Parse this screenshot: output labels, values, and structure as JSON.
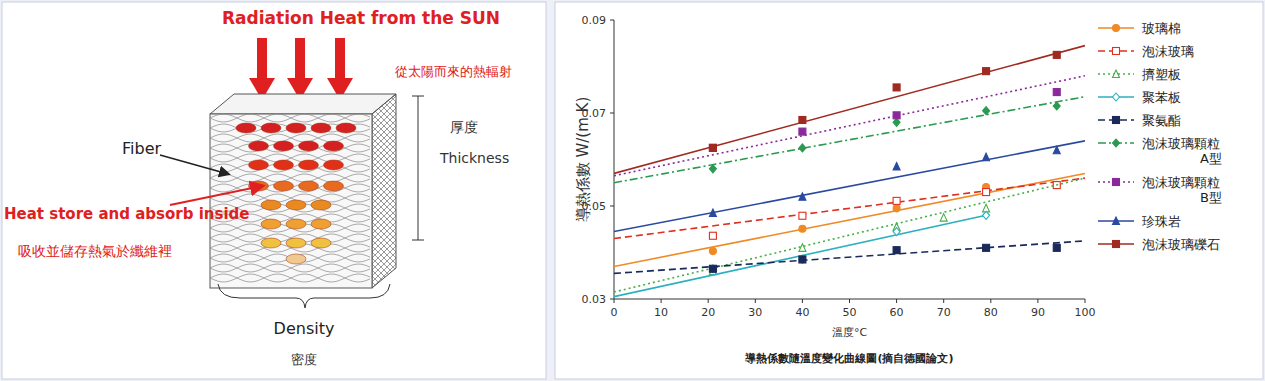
{
  "diagram": {
    "top_label": "Radiation Heat from the SUN",
    "top_label_zh": "從太陽而來的熱輻射",
    "fiber_label": "Fiber",
    "inside_label": "Heat store and absorb inside",
    "inside_label_zh": "吸收並儲存熱氣於纖維裡",
    "thickness_label_zh": "厚度",
    "thickness_label": "Thickness",
    "density_label": "Density",
    "density_label_zh": "密度"
  },
  "chart_data": {
    "type": "scatter",
    "title": "導熱係數隨溫度變化曲線圖(摘自德國論文)",
    "x_label": "溫度°C",
    "y_label": "導熱係數 W/(m K)",
    "xlim": [
      0,
      100
    ],
    "xticks": [
      0,
      10,
      20,
      30,
      40,
      50,
      60,
      70,
      80,
      90,
      100
    ],
    "ylim": [
      0.03,
      0.09
    ],
    "yticks": [
      0.03,
      0.05,
      0.07,
      0.09
    ],
    "grid": false,
    "legend": "right",
    "series": [
      {
        "name": "玻璃棉",
        "color": "#f08a24",
        "marker": "circle",
        "line_style": "solid",
        "x": [
          21,
          40,
          60,
          79,
          94
        ],
        "values": [
          0.0403,
          0.0451,
          0.0495,
          0.0541,
          0.0545
        ],
        "fit_x": [
          0,
          100
        ],
        "fit_values": [
          0.037,
          0.057
        ]
      },
      {
        "name": "泡沫玻璃",
        "color": "#e03020",
        "marker": "square-open",
        "line_style": "dashed",
        "x": [
          21,
          40,
          60,
          79,
          94
        ],
        "values": [
          0.0436,
          0.0479,
          0.0511,
          0.053,
          0.0545
        ],
        "fit_x": [
          0,
          100
        ],
        "fit_values": [
          0.043,
          0.056
        ]
      },
      {
        "name": "擠塑板",
        "color": "#44b044",
        "marker": "triangle-open",
        "line_style": "dotted",
        "x": [
          21,
          40,
          60,
          70,
          79
        ],
        "values": [
          0.036,
          0.041,
          0.0455,
          0.0475,
          0.0495
        ],
        "fit_x": [
          0,
          100
        ],
        "fit_values": [
          0.0315,
          0.056
        ]
      },
      {
        "name": "聚苯板",
        "color": "#2ab0c0",
        "marker": "diamond-open",
        "line_style": "solid",
        "x": [
          21,
          40,
          60,
          79
        ],
        "values": [
          0.0365,
          0.0385,
          0.0445,
          0.048
        ],
        "fit_x": [
          0,
          79
        ],
        "fit_values": [
          0.0305,
          0.048
        ]
      },
      {
        "name": "聚氨酯",
        "color": "#1a2a5a",
        "marker": "square",
        "line_style": "dashed",
        "x": [
          21,
          40,
          60,
          79,
          94
        ],
        "values": [
          0.0365,
          0.0385,
          0.0405,
          0.041,
          0.041
        ],
        "fit_x": [
          0,
          100
        ],
        "fit_values": [
          0.0355,
          0.0425
        ]
      },
      {
        "name": "泡沫玻璃顆粒A型",
        "color": "#2a9a50",
        "marker": "diamond",
        "line_style": "dashdot",
        "x": [
          21,
          40,
          60,
          79,
          94
        ],
        "values": [
          0.058,
          0.0625,
          0.068,
          0.0705,
          0.0715
        ],
        "fit_x": [
          0,
          100
        ],
        "fit_values": [
          0.055,
          0.0735
        ]
      },
      {
        "name": "泡沫玻璃顆粒B型",
        "color": "#8a2a9a",
        "marker": "square",
        "line_style": "dotted",
        "x": [
          21,
          40,
          60,
          94
        ],
        "values": [
          0.0625,
          0.066,
          0.0695,
          0.0745
        ],
        "fit_x": [
          0,
          100
        ],
        "fit_values": [
          0.0565,
          0.078
        ]
      },
      {
        "name": "珍珠岩",
        "color": "#2a4aa0",
        "marker": "triangle",
        "line_style": "solid",
        "x": [
          21,
          40,
          60,
          79,
          94
        ],
        "values": [
          0.0485,
          0.052,
          0.0585,
          0.0605,
          0.062
        ],
        "fit_x": [
          0,
          100
        ],
        "fit_values": [
          0.0445,
          0.064
        ]
      },
      {
        "name": "泡沫玻璃礫石",
        "color": "#a02a20",
        "marker": "square",
        "line_style": "solid",
        "x": [
          21,
          40,
          60,
          79,
          94
        ],
        "values": [
          0.0625,
          0.0685,
          0.0755,
          0.079,
          0.0825
        ],
        "fit_x": [
          0,
          100
        ],
        "fit_values": [
          0.057,
          0.0845
        ]
      }
    ]
  }
}
